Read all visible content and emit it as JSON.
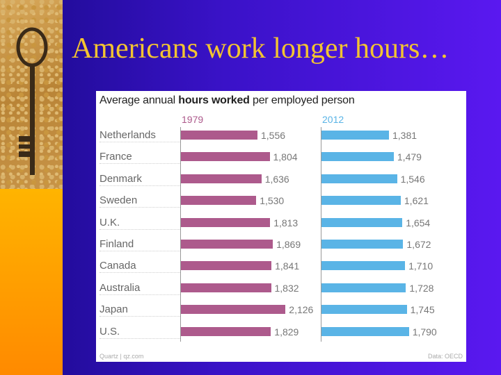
{
  "slide": {
    "title": "Americans work longer hours…"
  },
  "colors": {
    "series_1979": "#ad5a8c",
    "series_2012": "#5ab4e6"
  },
  "chart_data": {
    "type": "bar",
    "orientation": "horizontal",
    "title_prefix": "Average annual ",
    "title_bold": "hours worked",
    "title_suffix": " per employed person",
    "categories": [
      "Netherlands",
      "France",
      "Denmark",
      "Sweden",
      "U.K.",
      "Finland",
      "Canada",
      "Australia",
      "Japan",
      "U.S."
    ],
    "series": [
      {
        "name": "1979",
        "values": [
          1556,
          1804,
          1636,
          1530,
          1813,
          1869,
          1841,
          1832,
          2126,
          1829
        ],
        "labels": [
          "1,556",
          "1,804",
          "1,636",
          "1,530",
          "1,813",
          "1,869",
          "1,841",
          "1,832",
          "2,126",
          "1,829"
        ]
      },
      {
        "name": "2012",
        "values": [
          1381,
          1479,
          1546,
          1621,
          1654,
          1672,
          1710,
          1728,
          1745,
          1790
        ],
        "labels": [
          "1,381",
          "1,479",
          "1,546",
          "1,621",
          "1,654",
          "1,672",
          "1,710",
          "1,728",
          "1,745",
          "1,790"
        ]
      }
    ],
    "xlim": [
      0,
      2500
    ],
    "source_left": "Quartz | qz.com",
    "source_right": "Data: OECD"
  }
}
